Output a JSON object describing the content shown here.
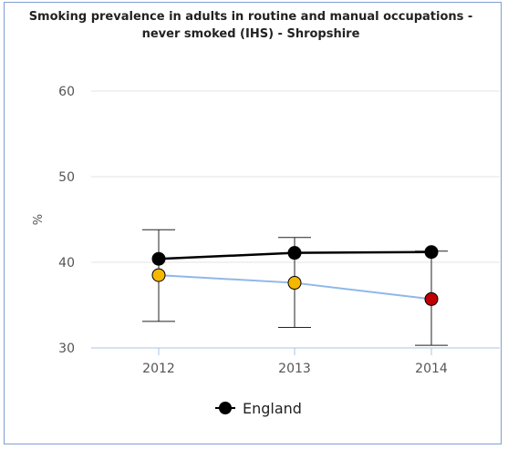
{
  "chart_data": {
    "type": "line",
    "title": "Smoking prevalence in adults in routine and manual occupations - never smoked (IHS) - Shropshire",
    "title_lines": [
      "Smoking prevalence in adults in routine and manual occupations -",
      "never smoked (IHS) - Shropshire"
    ],
    "ylabel": "%",
    "xlabel": "",
    "ylim": [
      30,
      60
    ],
    "yticks": [
      30,
      40,
      50,
      60
    ],
    "categories": [
      "2012",
      "2013",
      "2014"
    ],
    "grid": true,
    "legend_position": "bottom-center",
    "series": [
      {
        "name": "England",
        "values": [
          40.4,
          41.1,
          41.2
        ],
        "color": "#000000",
        "marker_color": "#000000",
        "in_legend": true
      },
      {
        "values": [
          38.5,
          37.6,
          35.7
        ],
        "color": "#8fb8e8",
        "marker_colors": [
          "#f5b800",
          "#f5b800",
          "#c00000"
        ],
        "error_low": [
          33.1,
          32.4,
          30.3
        ],
        "error_high": [
          43.8,
          42.9,
          41.3
        ]
      }
    ]
  }
}
